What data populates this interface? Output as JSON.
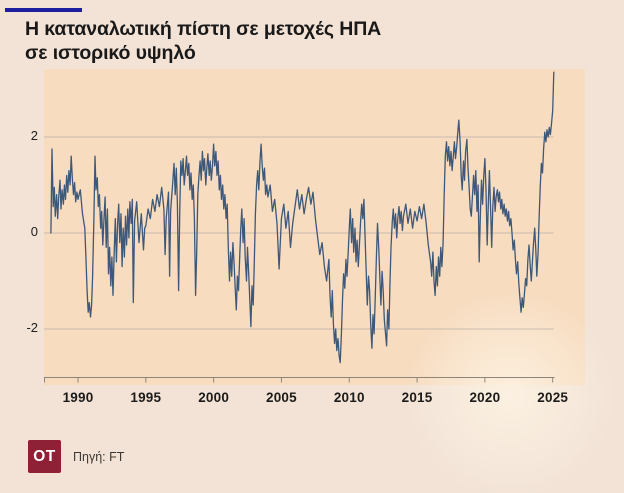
{
  "header": {
    "accent_bar_color": "#1e1e9e",
    "title_line1": "Η καταναλωτική πίστη σε μετοχές ΗΠΑ",
    "title_line2": "σε ιστορικό υψηλό"
  },
  "footer": {
    "logo_text": "OT",
    "logo_color": "#8f2137",
    "source_label": "Πηγή: FT"
  },
  "chart_data": {
    "type": "line",
    "title": "Η καταναλωτική πίστη σε μετοχές ΗΠΑ σε ιστορικό υψηλό",
    "xlabel": "",
    "ylabel": "",
    "source": "FT",
    "grid": "horizontal",
    "legend": "none",
    "line_color": "#3d5878",
    "plot_background": "#f7dcc0",
    "grid_color": "#c9bcad",
    "axis_color": "#8d857a",
    "x_range": [
      1987.6,
      2027.4
    ],
    "y_range": [
      -3.2,
      3.4
    ],
    "x_ticks": [
      1990,
      1995,
      2000,
      2005,
      2010,
      2015,
      2020,
      2025
    ],
    "y_ticks": [
      2,
      0,
      -2
    ],
    "points": [
      [
        1988.0,
        0.0
      ],
      [
        1988.08,
        1.75
      ],
      [
        1988.17,
        0.55
      ],
      [
        1988.25,
        0.95
      ],
      [
        1988.33,
        0.35
      ],
      [
        1988.42,
        0.8
      ],
      [
        1988.5,
        0.3
      ],
      [
        1988.58,
        0.75
      ],
      [
        1988.67,
        1.1
      ],
      [
        1988.75,
        0.5
      ],
      [
        1988.83,
        0.9
      ],
      [
        1988.92,
        0.6
      ],
      [
        1989.0,
        1.0
      ],
      [
        1989.08,
        0.7
      ],
      [
        1989.17,
        1.2
      ],
      [
        1989.25,
        0.85
      ],
      [
        1989.33,
        1.3
      ],
      [
        1989.42,
        1.0
      ],
      [
        1989.5,
        1.6
      ],
      [
        1989.58,
        1.15
      ],
      [
        1989.67,
        0.8
      ],
      [
        1989.75,
        1.05
      ],
      [
        1989.83,
        0.65
      ],
      [
        1989.92,
        0.85
      ],
      [
        1990.0,
        0.7
      ],
      [
        1990.17,
        0.9
      ],
      [
        1990.33,
        0.4
      ],
      [
        1990.5,
        0.1
      ],
      [
        1990.58,
        -0.5
      ],
      [
        1990.67,
        -1.2
      ],
      [
        1990.75,
        -1.65
      ],
      [
        1990.83,
        -1.45
      ],
      [
        1990.92,
        -1.75
      ],
      [
        1991.0,
        -1.5
      ],
      [
        1991.08,
        -0.9
      ],
      [
        1991.17,
        0.3
      ],
      [
        1991.25,
        1.6
      ],
      [
        1991.33,
        0.9
      ],
      [
        1991.42,
        1.15
      ],
      [
        1991.5,
        0.55
      ],
      [
        1991.58,
        0.8
      ],
      [
        1991.67,
        0.1
      ],
      [
        1991.75,
        0.45
      ],
      [
        1991.83,
        -0.25
      ],
      [
        1991.92,
        0.3
      ],
      [
        1992.0,
        0.75
      ],
      [
        1992.08,
        -0.3
      ],
      [
        1992.17,
        0.5
      ],
      [
        1992.25,
        -0.85
      ],
      [
        1992.33,
        -0.3
      ],
      [
        1992.42,
        -1.1
      ],
      [
        1992.5,
        -0.5
      ],
      [
        1992.58,
        -1.3
      ],
      [
        1992.67,
        -0.4
      ],
      [
        1992.75,
        0.3
      ],
      [
        1992.83,
        -0.6
      ],
      [
        1992.92,
        0.2
      ],
      [
        1993.0,
        0.6
      ],
      [
        1993.08,
        -0.2
      ],
      [
        1993.17,
        0.4
      ],
      [
        1993.25,
        -0.7
      ],
      [
        1993.33,
        0.1
      ],
      [
        1993.42,
        -0.5
      ],
      [
        1993.5,
        0.35
      ],
      [
        1993.58,
        -0.25
      ],
      [
        1993.67,
        0.5
      ],
      [
        1993.75,
        -0.1
      ],
      [
        1993.83,
        0.65
      ],
      [
        1993.92,
        0.2
      ],
      [
        1994.0,
        0.7
      ],
      [
        1994.08,
        -1.45
      ],
      [
        1994.17,
        0.25
      ],
      [
        1994.33,
        0.65
      ],
      [
        1994.5,
        -0.2
      ],
      [
        1994.67,
        0.4
      ],
      [
        1994.83,
        -0.35
      ],
      [
        1994.92,
        0.1
      ],
      [
        1995.0,
        0.15
      ],
      [
        1995.17,
        0.5
      ],
      [
        1995.33,
        0.3
      ],
      [
        1995.5,
        0.7
      ],
      [
        1995.67,
        0.45
      ],
      [
        1995.83,
        0.8
      ],
      [
        1996.0,
        0.55
      ],
      [
        1996.17,
        0.95
      ],
      [
        1996.33,
        0.5
      ],
      [
        1996.42,
        -0.45
      ],
      [
        1996.5,
        0.3
      ],
      [
        1996.67,
        0.85
      ],
      [
        1996.75,
        -0.9
      ],
      [
        1996.83,
        0.45
      ],
      [
        1997.0,
        1.1
      ],
      [
        1997.08,
        1.45
      ],
      [
        1997.17,
        0.8
      ],
      [
        1997.25,
        1.35
      ],
      [
        1997.33,
        0.6
      ],
      [
        1997.42,
        -1.2
      ],
      [
        1997.5,
        0.4
      ],
      [
        1997.58,
        1.5
      ],
      [
        1997.67,
        1.2
      ],
      [
        1997.75,
        1.55
      ],
      [
        1997.83,
        1.0
      ],
      [
        1997.92,
        1.3
      ],
      [
        1998.0,
        1.6
      ],
      [
        1998.08,
        1.2
      ],
      [
        1998.17,
        1.45
      ],
      [
        1998.25,
        0.9
      ],
      [
        1998.33,
        1.25
      ],
      [
        1998.42,
        0.7
      ],
      [
        1998.5,
        1.0
      ],
      [
        1998.58,
        0.3
      ],
      [
        1998.67,
        -1.3
      ],
      [
        1998.75,
        -0.4
      ],
      [
        1998.83,
        0.8
      ],
      [
        1998.92,
        1.2
      ],
      [
        1999.0,
        1.5
      ],
      [
        1999.08,
        1.1
      ],
      [
        1999.17,
        1.7
      ],
      [
        1999.25,
        1.3
      ],
      [
        1999.33,
        1.55
      ],
      [
        1999.42,
        1.0
      ],
      [
        1999.5,
        1.35
      ],
      [
        1999.58,
        1.65
      ],
      [
        1999.67,
        1.2
      ],
      [
        1999.75,
        1.5
      ],
      [
        1999.83,
        1.1
      ],
      [
        1999.92,
        1.4
      ],
      [
        2000.0,
        1.85
      ],
      [
        2000.08,
        1.4
      ],
      [
        2000.17,
        1.7
      ],
      [
        2000.25,
        1.2
      ],
      [
        2000.33,
        1.5
      ],
      [
        2000.42,
        0.9
      ],
      [
        2000.5,
        1.2
      ],
      [
        2000.58,
        0.7
      ],
      [
        2000.67,
        1.0
      ],
      [
        2000.75,
        0.5
      ],
      [
        2000.83,
        0.8
      ],
      [
        2000.92,
        0.3
      ],
      [
        2001.0,
        0.6
      ],
      [
        2001.08,
        -0.3
      ],
      [
        2001.17,
        -1.0
      ],
      [
        2001.25,
        -0.4
      ],
      [
        2001.33,
        -0.9
      ],
      [
        2001.42,
        -0.2
      ],
      [
        2001.5,
        -0.6
      ],
      [
        2001.58,
        -1.1
      ],
      [
        2001.67,
        -1.6
      ],
      [
        2001.75,
        -0.9
      ],
      [
        2001.83,
        -1.2
      ],
      [
        2001.92,
        -0.5
      ],
      [
        2002.0,
        0.1
      ],
      [
        2002.08,
        0.5
      ],
      [
        2002.17,
        -0.2
      ],
      [
        2002.25,
        0.3
      ],
      [
        2002.33,
        -0.5
      ],
      [
        2002.42,
        -1.0
      ],
      [
        2002.5,
        -0.3
      ],
      [
        2002.58,
        -0.8
      ],
      [
        2002.67,
        -1.4
      ],
      [
        2002.75,
        -1.95
      ],
      [
        2002.83,
        -1.1
      ],
      [
        2002.92,
        -1.5
      ],
      [
        2003.0,
        -0.6
      ],
      [
        2003.08,
        0.4
      ],
      [
        2003.17,
        1.0
      ],
      [
        2003.25,
        1.3
      ],
      [
        2003.33,
        0.9
      ],
      [
        2003.42,
        1.5
      ],
      [
        2003.5,
        1.85
      ],
      [
        2003.58,
        1.4
      ],
      [
        2003.67,
        1.1
      ],
      [
        2003.75,
        1.35
      ],
      [
        2003.83,
        0.8
      ],
      [
        2003.92,
        1.0
      ],
      [
        2004.0,
        0.75
      ],
      [
        2004.17,
        1.0
      ],
      [
        2004.33,
        0.45
      ],
      [
        2004.5,
        0.7
      ],
      [
        2004.67,
        0.2
      ],
      [
        2004.83,
        -0.75
      ],
      [
        2005.0,
        0.3
      ],
      [
        2005.17,
        0.6
      ],
      [
        2005.33,
        0.1
      ],
      [
        2005.5,
        0.45
      ],
      [
        2005.67,
        -0.3
      ],
      [
        2005.83,
        0.2
      ],
      [
        2006.0,
        0.55
      ],
      [
        2006.17,
        0.9
      ],
      [
        2006.33,
        0.5
      ],
      [
        2006.5,
        0.8
      ],
      [
        2006.67,
        0.4
      ],
      [
        2006.83,
        0.7
      ],
      [
        2007.0,
        0.95
      ],
      [
        2007.17,
        0.6
      ],
      [
        2007.33,
        0.85
      ],
      [
        2007.5,
        0.3
      ],
      [
        2007.67,
        -0.1
      ],
      [
        2007.83,
        -0.45
      ],
      [
        2008.0,
        -0.2
      ],
      [
        2008.17,
        -0.7
      ],
      [
        2008.33,
        -1.0
      ],
      [
        2008.5,
        -0.55
      ],
      [
        2008.58,
        -1.3
      ],
      [
        2008.67,
        -1.75
      ],
      [
        2008.75,
        -1.2
      ],
      [
        2008.83,
        -1.9
      ],
      [
        2008.92,
        -2.3
      ],
      [
        2009.0,
        -2.0
      ],
      [
        2009.08,
        -2.45
      ],
      [
        2009.17,
        -2.2
      ],
      [
        2009.25,
        -2.55
      ],
      [
        2009.33,
        -2.7
      ],
      [
        2009.42,
        -2.1
      ],
      [
        2009.5,
        -1.4
      ],
      [
        2009.58,
        -0.85
      ],
      [
        2009.67,
        -1.15
      ],
      [
        2009.75,
        -0.55
      ],
      [
        2009.83,
        -0.9
      ],
      [
        2009.92,
        -0.4
      ],
      [
        2010.0,
        0.1
      ],
      [
        2010.08,
        0.5
      ],
      [
        2010.17,
        -0.2
      ],
      [
        2010.25,
        0.3
      ],
      [
        2010.33,
        -0.4
      ],
      [
        2010.42,
        0.1
      ],
      [
        2010.5,
        -0.6
      ],
      [
        2010.58,
        -0.15
      ],
      [
        2010.67,
        -0.7
      ],
      [
        2010.75,
        -0.25
      ],
      [
        2010.83,
        0.2
      ],
      [
        2010.92,
        0.6
      ],
      [
        2011.0,
        0.3
      ],
      [
        2011.08,
        0.7
      ],
      [
        2011.17,
        -0.1
      ],
      [
        2011.25,
        -0.8
      ],
      [
        2011.33,
        -1.5
      ],
      [
        2011.42,
        -0.9
      ],
      [
        2011.5,
        -1.2
      ],
      [
        2011.58,
        -1.9
      ],
      [
        2011.67,
        -2.4
      ],
      [
        2011.75,
        -1.7
      ],
      [
        2011.83,
        -2.1
      ],
      [
        2011.92,
        -1.3
      ],
      [
        2012.0,
        -0.5
      ],
      [
        2012.08,
        0.2
      ],
      [
        2012.17,
        -0.3
      ],
      [
        2012.25,
        -0.9
      ],
      [
        2012.33,
        -1.5
      ],
      [
        2012.42,
        -0.8
      ],
      [
        2012.5,
        -1.2
      ],
      [
        2012.58,
        -1.8
      ],
      [
        2012.75,
        -2.35
      ],
      [
        2012.83,
        -1.6
      ],
      [
        2012.92,
        -2.0
      ],
      [
        2013.0,
        -1.1
      ],
      [
        2013.08,
        -0.3
      ],
      [
        2013.17,
        0.25
      ],
      [
        2013.25,
        0.5
      ],
      [
        2013.33,
        0.1
      ],
      [
        2013.42,
        0.4
      ],
      [
        2013.5,
        -0.1
      ],
      [
        2013.58,
        0.3
      ],
      [
        2013.67,
        0.55
      ],
      [
        2013.75,
        0.2
      ],
      [
        2013.83,
        0.45
      ],
      [
        2013.92,
        0.05
      ],
      [
        2014.0,
        0.35
      ],
      [
        2014.17,
        0.6
      ],
      [
        2014.33,
        0.2
      ],
      [
        2014.5,
        0.5
      ],
      [
        2014.67,
        0.1
      ],
      [
        2014.83,
        0.45
      ],
      [
        2015.0,
        0.25
      ],
      [
        2015.17,
        0.55
      ],
      [
        2015.33,
        0.3
      ],
      [
        2015.5,
        0.6
      ],
      [
        2015.67,
        0.2
      ],
      [
        2015.83,
        -0.25
      ],
      [
        2016.0,
        -0.6
      ],
      [
        2016.08,
        -0.9
      ],
      [
        2016.17,
        -0.4
      ],
      [
        2016.25,
        -1.0
      ],
      [
        2016.33,
        -1.3
      ],
      [
        2016.42,
        -0.7
      ],
      [
        2016.5,
        -1.1
      ],
      [
        2016.58,
        -0.5
      ],
      [
        2016.67,
        -0.9
      ],
      [
        2016.75,
        -0.3
      ],
      [
        2016.83,
        -0.7
      ],
      [
        2016.92,
        -0.2
      ],
      [
        2017.0,
        0.8
      ],
      [
        2017.08,
        1.6
      ],
      [
        2017.17,
        1.9
      ],
      [
        2017.25,
        1.5
      ],
      [
        2017.33,
        1.8
      ],
      [
        2017.42,
        1.4
      ],
      [
        2017.5,
        1.7
      ],
      [
        2017.58,
        1.3
      ],
      [
        2017.67,
        1.6
      ],
      [
        2017.75,
        1.9
      ],
      [
        2017.83,
        1.55
      ],
      [
        2017.92,
        1.8
      ],
      [
        2018.0,
        2.1
      ],
      [
        2018.08,
        2.35
      ],
      [
        2018.17,
        1.9
      ],
      [
        2018.25,
        1.2
      ],
      [
        2018.33,
        0.9
      ],
      [
        2018.42,
        1.5
      ],
      [
        2018.5,
        1.1
      ],
      [
        2018.58,
        1.7
      ],
      [
        2018.67,
        1.95
      ],
      [
        2018.75,
        1.4
      ],
      [
        2018.83,
        1.0
      ],
      [
        2018.92,
        0.5
      ],
      [
        2019.0,
        0.35
      ],
      [
        2019.08,
        0.75
      ],
      [
        2019.17,
        1.2
      ],
      [
        2019.25,
        0.8
      ],
      [
        2019.33,
        1.3
      ],
      [
        2019.42,
        0.45
      ],
      [
        2019.5,
        1.0
      ],
      [
        2019.58,
        -0.6
      ],
      [
        2019.67,
        0.4
      ],
      [
        2019.75,
        1.1
      ],
      [
        2019.83,
        0.6
      ],
      [
        2019.92,
        1.2
      ],
      [
        2020.0,
        1.55
      ],
      [
        2020.08,
        0.9
      ],
      [
        2020.17,
        -0.25
      ],
      [
        2020.25,
        0.6
      ],
      [
        2020.33,
        1.3
      ],
      [
        2020.42,
        0.5
      ],
      [
        2020.5,
        -0.3
      ],
      [
        2020.58,
        0.55
      ],
      [
        2020.67,
        0.95
      ],
      [
        2020.75,
        0.45
      ],
      [
        2020.83,
        0.75
      ],
      [
        2020.92,
        0.9
      ],
      [
        2021.0,
        0.65
      ],
      [
        2021.08,
        0.85
      ],
      [
        2021.17,
        0.5
      ],
      [
        2021.25,
        0.7
      ],
      [
        2021.33,
        0.4
      ],
      [
        2021.42,
        0.6
      ],
      [
        2021.5,
        0.35
      ],
      [
        2021.58,
        0.5
      ],
      [
        2021.67,
        0.25
      ],
      [
        2021.75,
        0.45
      ],
      [
        2021.83,
        0.15
      ],
      [
        2021.92,
        0.3
      ],
      [
        2022.0,
        0.0
      ],
      [
        2022.08,
        -0.35
      ],
      [
        2022.17,
        -0.15
      ],
      [
        2022.25,
        -0.55
      ],
      [
        2022.33,
        -0.85
      ],
      [
        2022.42,
        -0.6
      ],
      [
        2022.5,
        -1.05
      ],
      [
        2022.58,
        -1.35
      ],
      [
        2022.67,
        -1.65
      ],
      [
        2022.75,
        -1.35
      ],
      [
        2022.83,
        -1.55
      ],
      [
        2022.92,
        -1.25
      ],
      [
        2023.0,
        -0.95
      ],
      [
        2023.08,
        -1.1
      ],
      [
        2023.17,
        -0.55
      ],
      [
        2023.25,
        -0.25
      ],
      [
        2023.33,
        -0.65
      ],
      [
        2023.42,
        -1.0
      ],
      [
        2023.5,
        -0.6
      ],
      [
        2023.58,
        -0.25
      ],
      [
        2023.67,
        0.1
      ],
      [
        2023.75,
        -0.35
      ],
      [
        2023.83,
        -0.9
      ],
      [
        2023.92,
        -0.4
      ],
      [
        2024.0,
        0.3
      ],
      [
        2024.08,
        0.95
      ],
      [
        2024.17,
        1.45
      ],
      [
        2024.25,
        1.25
      ],
      [
        2024.33,
        1.75
      ],
      [
        2024.42,
        2.1
      ],
      [
        2024.5,
        1.9
      ],
      [
        2024.58,
        2.15
      ],
      [
        2024.67,
        2.0
      ],
      [
        2024.75,
        2.2
      ],
      [
        2024.83,
        2.05
      ],
      [
        2024.92,
        2.3
      ],
      [
        2025.0,
        2.55
      ],
      [
        2025.08,
        3.35
      ]
    ]
  }
}
